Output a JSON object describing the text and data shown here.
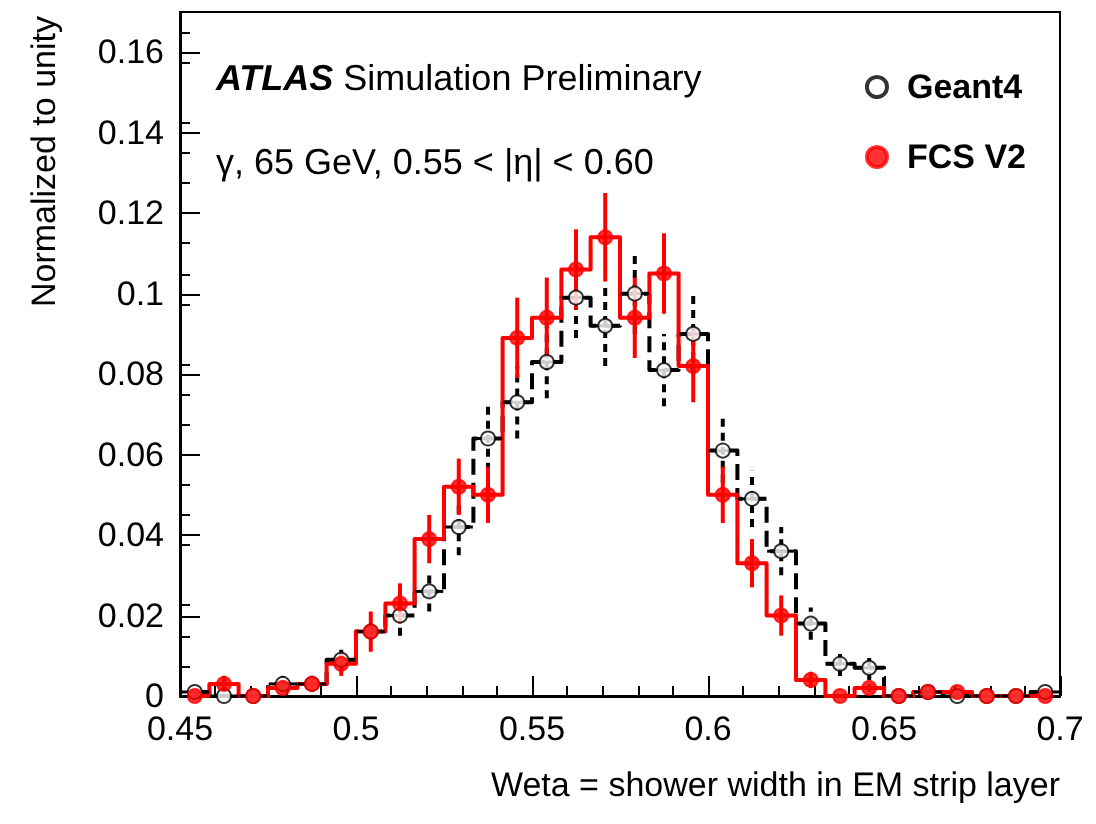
{
  "chart_data": {
    "type": "step",
    "x": [
      0.4542,
      0.4625,
      0.4708,
      0.4792,
      0.4875,
      0.4958,
      0.5042,
      0.5125,
      0.5208,
      0.5292,
      0.5375,
      0.5458,
      0.5542,
      0.5625,
      0.5708,
      0.5792,
      0.5875,
      0.5958,
      0.6042,
      0.6125,
      0.6208,
      0.6292,
      0.6375,
      0.6458,
      0.6542,
      0.6625,
      0.6708,
      0.6792,
      0.6875,
      0.6958
    ],
    "series": [
      {
        "name": "Geant4",
        "color": "#000000",
        "marker": "circle",
        "line_style": "dashed",
        "values": [
          0.001,
          0,
          0,
          0.003,
          0.003,
          0.009,
          0.016,
          0.02,
          0.026,
          0.042,
          0.064,
          0.073,
          0.083,
          0.099,
          0.092,
          0.1,
          0.081,
          0.09,
          0.061,
          0.049,
          0.036,
          0.018,
          0.008,
          0.007,
          0,
          0.001,
          0,
          0,
          0,
          0.001
        ],
        "errors": [
          null,
          null,
          null,
          0.002,
          0.002,
          0.003,
          null,
          0.005,
          0.005,
          0.007,
          0.008,
          0.009,
          0.009,
          0.01,
          0.01,
          0.01,
          0.009,
          0.01,
          0.008,
          0.007,
          0.006,
          0.004,
          0.003,
          0.003,
          null,
          null,
          null,
          null,
          null,
          null
        ],
        "xerrors": [
          0.004,
          0.004,
          0.004,
          0.004,
          0.004,
          0.004,
          0.004,
          0.004,
          0.004,
          0.004,
          0.004,
          0.004,
          0.004,
          0.004,
          0.004,
          0.004,
          0.004,
          0.004,
          0.004,
          0.004,
          0.004,
          0.004,
          0.004,
          0.004,
          0.004,
          0.004,
          0.004,
          0.004,
          0.004,
          0.004
        ]
      },
      {
        "name": "FCS V2",
        "color": "#ff0000",
        "marker": "circle",
        "line_style": "solid",
        "values": [
          0,
          0.003,
          0,
          0.002,
          0.003,
          0.008,
          0.016,
          0.023,
          0.039,
          0.052,
          0.05,
          0.089,
          0.094,
          0.106,
          0.114,
          0.094,
          0.105,
          0.082,
          0.05,
          0.033,
          0.02,
          0.004,
          0,
          0.002,
          0,
          0.001,
          0.001,
          0,
          0,
          0
        ],
        "errors": [
          null,
          0.002,
          null,
          null,
          0.002,
          0.003,
          0.005,
          0.005,
          0.006,
          0.007,
          0.007,
          0.01,
          0.01,
          0.01,
          0.011,
          0.01,
          0.01,
          0.009,
          0.007,
          0.006,
          0.005,
          0.002,
          null,
          0.001,
          null,
          null,
          null,
          null,
          null,
          null
        ]
      }
    ],
    "xlim": [
      0.45,
      0.7
    ],
    "xticks": [
      0.45,
      0.5,
      0.55,
      0.6,
      0.65,
      0.7
    ],
    "ylim": [
      0,
      0.17
    ],
    "yticks": [
      0,
      0.02,
      0.04,
      0.06,
      0.08,
      0.1,
      0.12,
      0.14,
      0.16
    ],
    "xlabel": "Weta = shower width in EM strip layer",
    "ylabel": "Normalized to unity",
    "annotations": [
      "ATLAS Simulation Preliminary",
      "γ, 65 GeV, 0.55 < |η| < 0.60"
    ],
    "legend": "top right"
  }
}
